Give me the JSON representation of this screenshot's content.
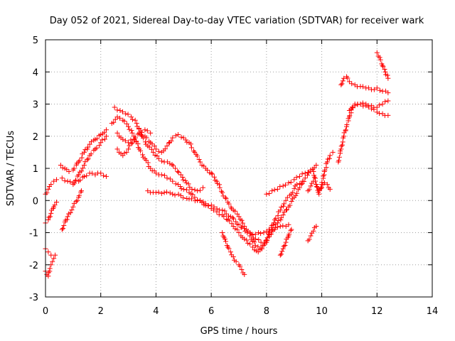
{
  "chart_data": {
    "type": "scatter",
    "title": "Day 052 of 2021, Sidereal Day-to-day VTEC variation (SDTVAR) for receiver wark",
    "xlabel": "GPS time / hours",
    "ylabel": "SDTVAR / TECUs",
    "xlim": [
      0,
      14
    ],
    "ylim": [
      -3,
      5
    ],
    "xticks": [
      "0",
      "2",
      "4",
      "6",
      "8",
      "10",
      "12",
      "14"
    ],
    "yticks": [
      "-3",
      "-2",
      "-1",
      "0",
      "1",
      "2",
      "3",
      "4",
      "5"
    ],
    "grid": true,
    "marker": "+",
    "color": "#ff0000",
    "series": [
      {
        "x": [
          0.0,
          0.1,
          0.2,
          0.3,
          0.4
        ],
        "y": [
          0.2,
          0.35,
          0.5,
          0.6,
          0.65
        ]
      },
      {
        "x": [
          0.0,
          0.1,
          0.2,
          0.3,
          0.4
        ],
        "y": [
          -0.7,
          -0.6,
          -0.4,
          -0.2,
          -0.05
        ]
      },
      {
        "x": [
          0.0,
          0.1,
          0.2,
          0.3,
          0.35
        ],
        "y": [
          -1.5,
          -1.6,
          -1.7,
          -1.8,
          -1.7
        ]
      },
      {
        "x": [
          0.0,
          0.05,
          0.1,
          0.15,
          0.2,
          0.25
        ],
        "y": [
          -2.2,
          -2.3,
          -2.35,
          -2.2,
          -2.0,
          -1.9
        ]
      },
      {
        "x": [
          0.55,
          0.7,
          0.85,
          1.0,
          1.2,
          1.4,
          1.6,
          1.8,
          2.0,
          2.2
        ],
        "y": [
          1.1,
          1.0,
          0.9,
          0.95,
          1.2,
          1.5,
          1.75,
          1.9,
          2.05,
          2.2
        ]
      },
      {
        "x": [
          0.6,
          0.8,
          1.0,
          1.2,
          1.4,
          1.6,
          1.8,
          2.0,
          2.2
        ],
        "y": [
          0.7,
          0.6,
          0.55,
          0.6,
          0.75,
          0.85,
          0.8,
          0.85,
          0.75
        ]
      },
      {
        "x": [
          1.0,
          1.2,
          1.4,
          1.6,
          1.8,
          2.0,
          2.2
        ],
        "y": [
          0.5,
          0.8,
          1.1,
          1.4,
          1.6,
          1.8,
          2.0
        ]
      },
      {
        "x": [
          0.6,
          0.8,
          1.0,
          1.2,
          1.3
        ],
        "y": [
          -0.9,
          -0.5,
          -0.2,
          0.1,
          0.3
        ]
      },
      {
        "x": [
          2.4,
          2.6,
          2.8,
          3.0,
          3.2,
          3.4,
          3.6,
          3.8,
          4.0,
          4.2,
          4.4,
          4.6,
          4.8,
          5.0,
          5.2,
          5.4,
          5.6,
          5.8,
          6.0,
          6.2,
          6.4,
          6.6,
          6.8,
          7.0,
          7.2,
          7.4
        ],
        "y": [
          2.4,
          2.6,
          2.5,
          2.3,
          2.0,
          1.6,
          1.3,
          1.0,
          0.85,
          0.8,
          0.7,
          0.6,
          0.5,
          0.35,
          0.25,
          0.1,
          0.0,
          -0.15,
          -0.25,
          -0.35,
          -0.45,
          -0.6,
          -0.8,
          -1.0,
          -1.2,
          -1.35
        ]
      },
      {
        "x": [
          2.5,
          2.7,
          2.9,
          3.1,
          3.3,
          3.5,
          3.7,
          3.9,
          4.1,
          4.3,
          4.5,
          4.7,
          4.9,
          5.1,
          5.3,
          5.5,
          5.7
        ],
        "y": [
          2.9,
          2.8,
          2.7,
          2.6,
          2.4,
          2.0,
          1.7,
          1.5,
          1.3,
          1.2,
          1.15,
          1.0,
          0.8,
          0.55,
          0.35,
          0.3,
          0.4
        ]
      },
      {
        "x": [
          2.6,
          2.8,
          3.0,
          3.2,
          3.4,
          3.6,
          3.8,
          4.0,
          4.2,
          4.4,
          4.6,
          4.8,
          5.0,
          5.2,
          5.4,
          5.6,
          5.8,
          6.0,
          6.2,
          6.4,
          6.6,
          6.8,
          7.0,
          7.2,
          7.4,
          7.6,
          7.8
        ],
        "y": [
          1.6,
          1.4,
          1.6,
          1.9,
          2.1,
          2.0,
          1.8,
          1.6,
          1.5,
          1.7,
          1.95,
          2.05,
          1.95,
          1.8,
          1.5,
          1.2,
          1.0,
          0.85,
          0.6,
          0.25,
          -0.05,
          -0.3,
          -0.5,
          -0.8,
          -1.0,
          -1.2,
          -1.3
        ]
      },
      {
        "x": [
          2.6,
          2.8,
          3.0,
          3.2,
          3.4,
          3.6,
          3.8
        ],
        "y": [
          2.1,
          1.9,
          1.8,
          1.9,
          2.1,
          2.2,
          2.1
        ]
      },
      {
        "x": [
          3.7,
          4.0,
          4.3,
          4.6,
          4.9,
          5.2,
          5.5,
          5.8,
          6.1,
          6.4,
          6.7,
          7.0,
          7.3,
          7.6,
          7.9,
          8.2,
          8.5,
          8.8
        ],
        "y": [
          0.3,
          0.25,
          0.25,
          0.2,
          0.15,
          0.05,
          0.0,
          -0.1,
          -0.2,
          -0.3,
          -0.5,
          -0.75,
          -1.0,
          -1.05,
          -1.0,
          -0.9,
          -0.8,
          -0.75
        ]
      },
      {
        "x": [
          6.4,
          6.5,
          6.6,
          6.7,
          6.8,
          6.9,
          7.0,
          7.1,
          7.2
        ],
        "y": [
          -1.0,
          -1.2,
          -1.45,
          -1.6,
          -1.75,
          -1.9,
          -2.0,
          -2.15,
          -2.3
        ]
      },
      {
        "x": [
          7.4,
          7.6,
          7.8,
          8.0,
          8.2,
          8.4,
          8.6,
          8.8,
          9.0,
          9.2,
          9.4,
          9.6
        ],
        "y": [
          -1.1,
          -1.4,
          -1.5,
          -1.3,
          -0.95,
          -0.7,
          -0.45,
          -0.2,
          0.1,
          0.4,
          0.7,
          0.9
        ]
      },
      {
        "x": [
          7.5,
          7.7,
          7.9,
          8.1,
          8.3,
          8.5,
          8.7,
          8.9,
          9.1,
          9.3
        ],
        "y": [
          -1.45,
          -1.6,
          -1.4,
          -1.0,
          -0.6,
          -0.3,
          0.0,
          0.2,
          0.5,
          0.6
        ]
      },
      {
        "x": [
          8.0,
          8.2,
          8.4,
          8.6,
          8.8,
          9.0,
          9.2,
          9.4,
          9.6,
          9.8
        ],
        "y": [
          0.2,
          0.3,
          0.35,
          0.45,
          0.55,
          0.65,
          0.75,
          0.85,
          0.95,
          1.1
        ]
      },
      {
        "x": [
          8.5,
          8.6,
          8.7,
          8.8,
          8.9
        ],
        "y": [
          -1.7,
          -1.5,
          -1.3,
          -1.1,
          -0.9
        ]
      },
      {
        "x": [
          9.5,
          9.6,
          9.7,
          9.8,
          9.9,
          10.0,
          10.1,
          10.2,
          10.3
        ],
        "y": [
          0.3,
          0.45,
          0.6,
          0.5,
          0.35,
          0.4,
          0.55,
          0.5,
          0.35
        ]
      },
      {
        "x": [
          9.7,
          9.8,
          9.9,
          10.0,
          10.1,
          10.2,
          10.3,
          10.4
        ],
        "y": [
          0.9,
          0.5,
          0.2,
          0.5,
          0.9,
          1.2,
          1.4,
          1.5
        ]
      },
      {
        "x": [
          9.5,
          9.6,
          9.7,
          9.8
        ],
        "y": [
          -1.25,
          -1.1,
          -0.95,
          -0.8
        ]
      },
      {
        "x": [
          10.6,
          10.7,
          10.8,
          10.9,
          11.0,
          11.1,
          11.2,
          11.3
        ],
        "y": [
          1.2,
          1.6,
          2.0,
          2.3,
          2.6,
          2.9,
          3.0,
          3.0
        ]
      },
      {
        "x": [
          10.7,
          10.8,
          10.9,
          11.0,
          11.2,
          11.4,
          11.6,
          11.8,
          12.0,
          12.2,
          12.4
        ],
        "y": [
          3.6,
          3.8,
          3.85,
          3.7,
          3.6,
          3.55,
          3.5,
          3.45,
          3.5,
          3.4,
          3.35
        ]
      },
      {
        "x": [
          11.0,
          11.2,
          11.4,
          11.6,
          11.8,
          12.0,
          12.2,
          12.4
        ],
        "y": [
          2.8,
          2.95,
          3.0,
          3.0,
          2.95,
          2.9,
          3.0,
          3.1
        ]
      },
      {
        "x": [
          11.4,
          11.6,
          11.8,
          12.0,
          12.2,
          12.4
        ],
        "y": [
          3.0,
          2.95,
          2.85,
          2.75,
          2.7,
          2.65
        ]
      },
      {
        "x": [
          12.0,
          12.1,
          12.2,
          12.3,
          12.4
        ],
        "y": [
          4.6,
          4.45,
          4.2,
          4.0,
          3.8
        ]
      }
    ]
  }
}
